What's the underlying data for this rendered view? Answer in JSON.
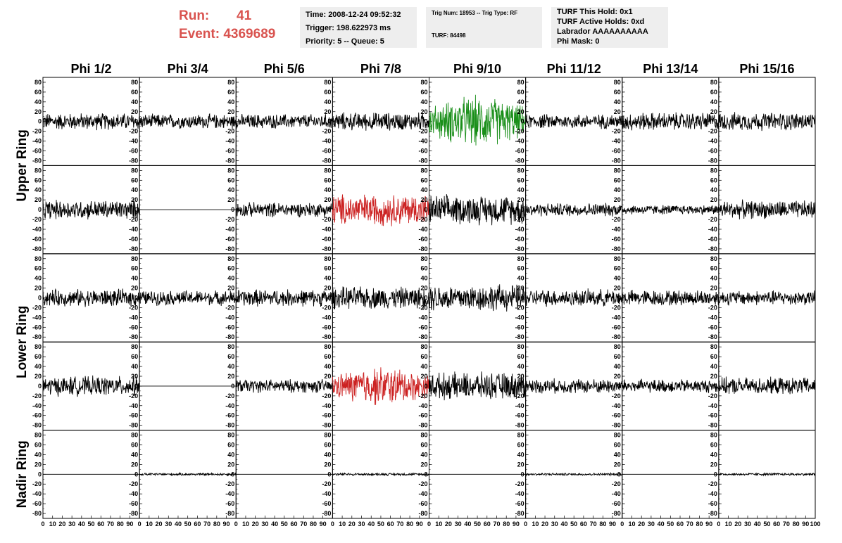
{
  "header": {
    "run_label": "Run:",
    "run_value": "41",
    "event_label": "Event:",
    "event_value": "4369689",
    "time": "Time: 2008-12-24 09:52:32",
    "trigger": "Trigger: 198.622973 ms",
    "priority_queue": "Priority: 5 -- Queue: 5",
    "trig_num_type": "Trig Num: 18953 -- Trig Type: RF",
    "turf": "TURF: 84498",
    "turf_this_hold": "TURF This Hold: 0x1",
    "turf_active_holds": "TURF Active Holds: 0xd",
    "labrador": "Labrador AAAAAAAAAA",
    "phi_mask": "Phi Mask: 0"
  },
  "chart_data": {
    "type": "line",
    "columns": [
      "Phi 1/2",
      "Phi 3/4",
      "Phi 5/6",
      "Phi 7/8",
      "Phi 9/10",
      "Phi 11/12",
      "Phi 13/14",
      "Phi 15/16"
    ],
    "ring_labels": [
      "Upper Ring",
      "Lower Ring",
      "Nadir Ring"
    ],
    "rows": 5,
    "y_ticks": [
      80,
      60,
      40,
      20,
      0,
      -20,
      -40,
      -60,
      -80
    ],
    "x_ticks": [
      0,
      10,
      20,
      30,
      40,
      50,
      60,
      70,
      80,
      90,
      100
    ],
    "ylim": [
      -90,
      90
    ],
    "xlim": [
      0,
      100
    ],
    "colors": {
      "default": "#000000",
      "green": "#1a8f1a",
      "red": "#cc2222"
    },
    "highlighted": [
      {
        "row": 0,
        "col": 4,
        "color": "green"
      },
      {
        "row": 1,
        "col": 3,
        "color": "red"
      },
      {
        "row": 3,
        "col": 3,
        "color": "red"
      }
    ],
    "panel_amplitudes": [
      [
        14,
        12,
        12,
        15,
        42,
        12,
        15,
        15
      ],
      [
        16,
        0,
        12,
        26,
        24,
        11,
        8,
        15
      ],
      [
        14,
        12,
        14,
        18,
        22,
        14,
        13,
        12
      ],
      [
        16,
        0,
        11,
        32,
        22,
        12,
        11,
        14
      ],
      [
        0,
        2,
        0,
        2,
        0,
        2,
        0,
        2
      ]
    ]
  }
}
